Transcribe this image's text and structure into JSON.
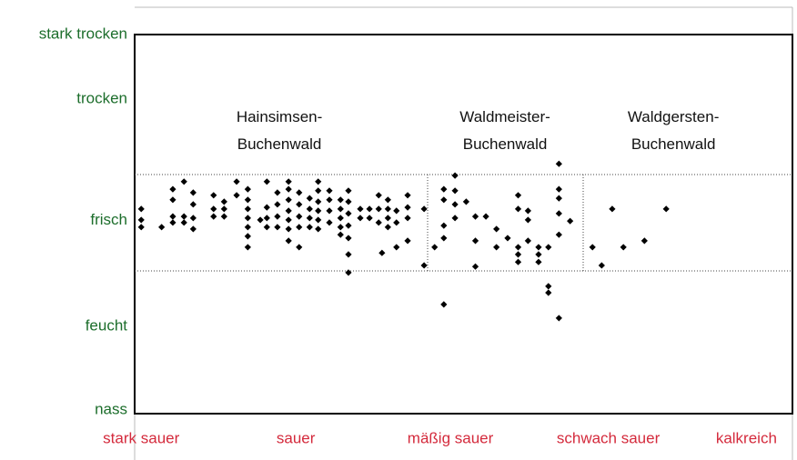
{
  "chart_data": {
    "type": "scatter",
    "xlim": [
      0,
      100
    ],
    "ylim": [
      0,
      100
    ],
    "xticks": [
      {
        "value": 1,
        "label": "stark sauer"
      },
      {
        "value": 24.5,
        "label": "sauer"
      },
      {
        "value": 48,
        "label": "mäßig sauer"
      },
      {
        "value": 72,
        "label": "schwach sauer"
      },
      {
        "value": 93,
        "label": "kalkreich"
      }
    ],
    "yticks": [
      {
        "value": 1,
        "label": "nass"
      },
      {
        "value": 23,
        "label": "feucht"
      },
      {
        "value": 51,
        "label": "frisch"
      },
      {
        "value": 83,
        "label": "trocken"
      },
      {
        "value": 100,
        "label": "stark trocken"
      }
    ],
    "annotations": [
      {
        "lines": [
          "Hainsimsen-",
          "Buchenwald"
        ],
        "x": 22,
        "y": 78
      },
      {
        "lines": [
          "Waldmeister-",
          "Buchenwald"
        ],
        "x": 56.3,
        "y": 78
      },
      {
        "lines": [
          "Waldgersten-",
          "Buchenwald"
        ],
        "x": 81.9,
        "y": 78
      }
    ],
    "series": [
      {
        "color": "#000000",
        "x": [
          1.0,
          1.0,
          1.0,
          4.1,
          5.8,
          5.8,
          5.8,
          5.8,
          7.5,
          7.5,
          7.5,
          8.9,
          8.9,
          8.9,
          8.9,
          12.0,
          12.0,
          12.0,
          13.6,
          13.6,
          13.6,
          15.5,
          15.5,
          17.2,
          17.2,
          17.2,
          17.2,
          17.2,
          17.2,
          17.2,
          19.1,
          20.1,
          20.1,
          20.1,
          20.1,
          21.7,
          21.7,
          21.7,
          21.7,
          23.4,
          23.4,
          23.4,
          23.4,
          23.4,
          23.4,
          23.4,
          25.0,
          25.0,
          25.0,
          25.0,
          25.0,
          26.6,
          26.6,
          26.6,
          26.6,
          27.9,
          27.9,
          27.9,
          27.9,
          27.9,
          27.9,
          29.6,
          29.6,
          29.6,
          29.6,
          31.3,
          31.3,
          31.3,
          31.3,
          31.3,
          32.5,
          32.5,
          32.5,
          32.5,
          32.5,
          32.5,
          32.5,
          34.3,
          34.3,
          35.7,
          35.7,
          37.1,
          37.1,
          37.1,
          37.6,
          38.5,
          38.5,
          38.5,
          38.5,
          39.8,
          39.8,
          39.8,
          41.5,
          41.5,
          41.5,
          41.5,
          44.0,
          44.0,
          45.6,
          47.0,
          47.0,
          47.0,
          47.0,
          47.0,
          48.7,
          48.7,
          48.7,
          48.7,
          50.4,
          51.8,
          51.8,
          51.8,
          53.4,
          55.0,
          55.0,
          56.7,
          58.3,
          58.3,
          58.3,
          58.3,
          58.3,
          59.8,
          59.8,
          59.8,
          61.4,
          61.4,
          61.4,
          62.9,
          62.9,
          62.9,
          64.5,
          64.5,
          64.5,
          64.5,
          64.5,
          64.5,
          66.2,
          69.6,
          71.0,
          72.6,
          74.3,
          77.5,
          80.8
        ],
        "y": [
          54.0,
          51.1,
          49.2,
          49.2,
          59.2,
          56.4,
          52.0,
          50.4,
          61.2,
          52.0,
          50.4,
          58.3,
          55.2,
          51.6,
          48.7,
          57.6,
          54.0,
          52.0,
          55.9,
          54.0,
          52.0,
          61.2,
          57.6,
          59.2,
          56.4,
          54.0,
          51.6,
          49.2,
          46.8,
          43.9,
          51.1,
          61.2,
          54.4,
          51.6,
          49.2,
          58.3,
          55.2,
          52.0,
          49.2,
          61.2,
          59.2,
          56.4,
          53.5,
          51.1,
          48.7,
          45.6,
          58.3,
          55.2,
          52.0,
          49.2,
          43.9,
          56.8,
          54.0,
          51.6,
          49.2,
          61.2,
          58.8,
          55.9,
          53.5,
          51.1,
          48.7,
          58.8,
          56.4,
          53.5,
          50.4,
          56.4,
          54.0,
          51.6,
          49.2,
          47.2,
          58.8,
          55.9,
          52.8,
          49.6,
          46.3,
          42.0,
          37.2,
          54.0,
          51.6,
          54.0,
          51.6,
          57.6,
          54.0,
          50.4,
          42.4,
          56.4,
          54.0,
          51.6,
          49.2,
          53.5,
          50.4,
          43.9,
          57.6,
          54.4,
          51.6,
          45.6,
          54.0,
          39.1,
          43.9,
          59.2,
          56.4,
          49.6,
          46.3,
          28.8,
          62.8,
          58.8,
          55.2,
          51.6,
          55.9,
          52.0,
          45.6,
          38.8,
          52.0,
          48.7,
          43.9,
          46.3,
          57.6,
          54.0,
          43.9,
          42.0,
          40.0,
          53.5,
          51.1,
          45.6,
          43.9,
          42.0,
          40.0,
          43.9,
          33.6,
          31.9,
          65.9,
          59.2,
          56.8,
          52.8,
          47.2,
          25.2,
          50.8,
          43.9,
          39.1,
          54.0,
          43.9,
          45.6,
          54.0
        ]
      }
    ]
  }
}
